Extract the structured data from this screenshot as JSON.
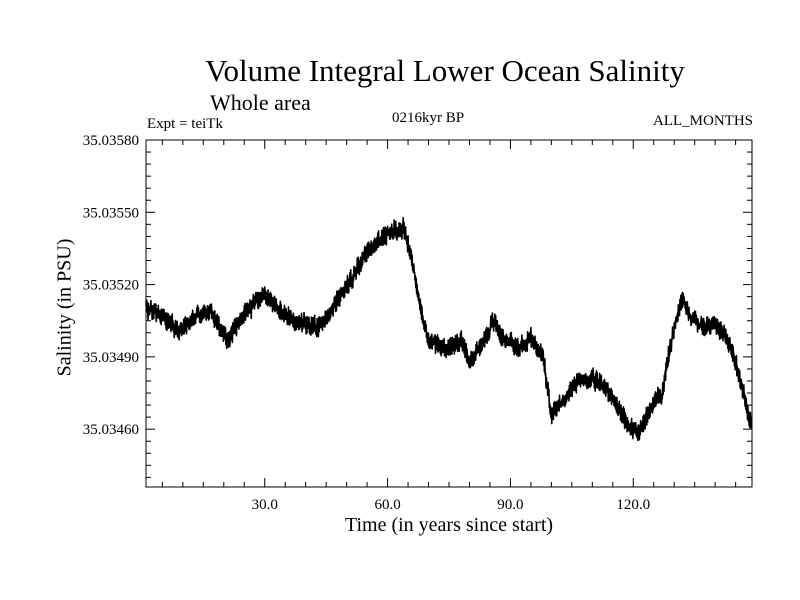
{
  "chart_data": {
    "type": "line",
    "title": "Volume Integral Lower Ocean Salinity",
    "subtitle": "Whole area",
    "experiment": "Expt = teiTk",
    "period": "0216kyr BP",
    "months": "ALL_MONTHS",
    "xlabel": "Time (in years since start)",
    "ylabel": "Salinity (in PSU)",
    "xlim": [
      1,
      149
    ],
    "ylim": [
      35.03436,
      35.0358
    ],
    "x_ticks": [
      30,
      60,
      90,
      120
    ],
    "x_tick_labels": [
      "30.0",
      "60.0",
      "90.0",
      "120.0"
    ],
    "y_ticks": [
      35.0346,
      35.0349,
      35.0352,
      35.0355,
      35.0358
    ],
    "y_tick_labels": [
      "35.03460",
      "35.03490",
      "35.03520",
      "35.03550",
      "35.03580"
    ],
    "series": [
      {
        "name": "Salinity",
        "color": "#000000",
        "noise_amplitude": 7e-05,
        "anchors": [
          [
            1,
            35.0351
          ],
          [
            5,
            35.03507
          ],
          [
            9,
            35.035
          ],
          [
            13,
            35.03507
          ],
          [
            17,
            35.03508
          ],
          [
            21,
            35.03497
          ],
          [
            25,
            35.03508
          ],
          [
            30,
            35.03516
          ],
          [
            35,
            35.03507
          ],
          [
            39,
            35.03504
          ],
          [
            43,
            35.03502
          ],
          [
            47,
            35.03512
          ],
          [
            51,
            35.03522
          ],
          [
            55,
            35.03534
          ],
          [
            59,
            35.0354
          ],
          [
            62,
            35.03543
          ],
          [
            64,
            35.03543
          ],
          [
            66,
            35.0353
          ],
          [
            68,
            35.0351
          ],
          [
            70,
            35.03497
          ],
          [
            74,
            35.03493
          ],
          [
            78,
            35.03497
          ],
          [
            80,
            35.03488
          ],
          [
            83,
            35.03495
          ],
          [
            86,
            35.03505
          ],
          [
            88,
            35.03498
          ],
          [
            92,
            35.03494
          ],
          [
            95,
            35.03498
          ],
          [
            98,
            35.0349
          ],
          [
            100,
            35.03465
          ],
          [
            103,
            35.03472
          ],
          [
            107,
            35.03481
          ],
          [
            111,
            35.0348
          ],
          [
            113,
            35.03478
          ],
          [
            116,
            35.0347
          ],
          [
            119,
            35.03461
          ],
          [
            121,
            35.03458
          ],
          [
            124,
            35.03468
          ],
          [
            127,
            35.03475
          ],
          [
            130,
            35.03503
          ],
          [
            132,
            35.03514
          ],
          [
            134,
            35.03507
          ],
          [
            137,
            35.03502
          ],
          [
            140,
            35.03504
          ],
          [
            143,
            35.03498
          ],
          [
            145,
            35.03488
          ],
          [
            147,
            35.03475
          ],
          [
            149,
            35.0346
          ]
        ]
      }
    ]
  }
}
